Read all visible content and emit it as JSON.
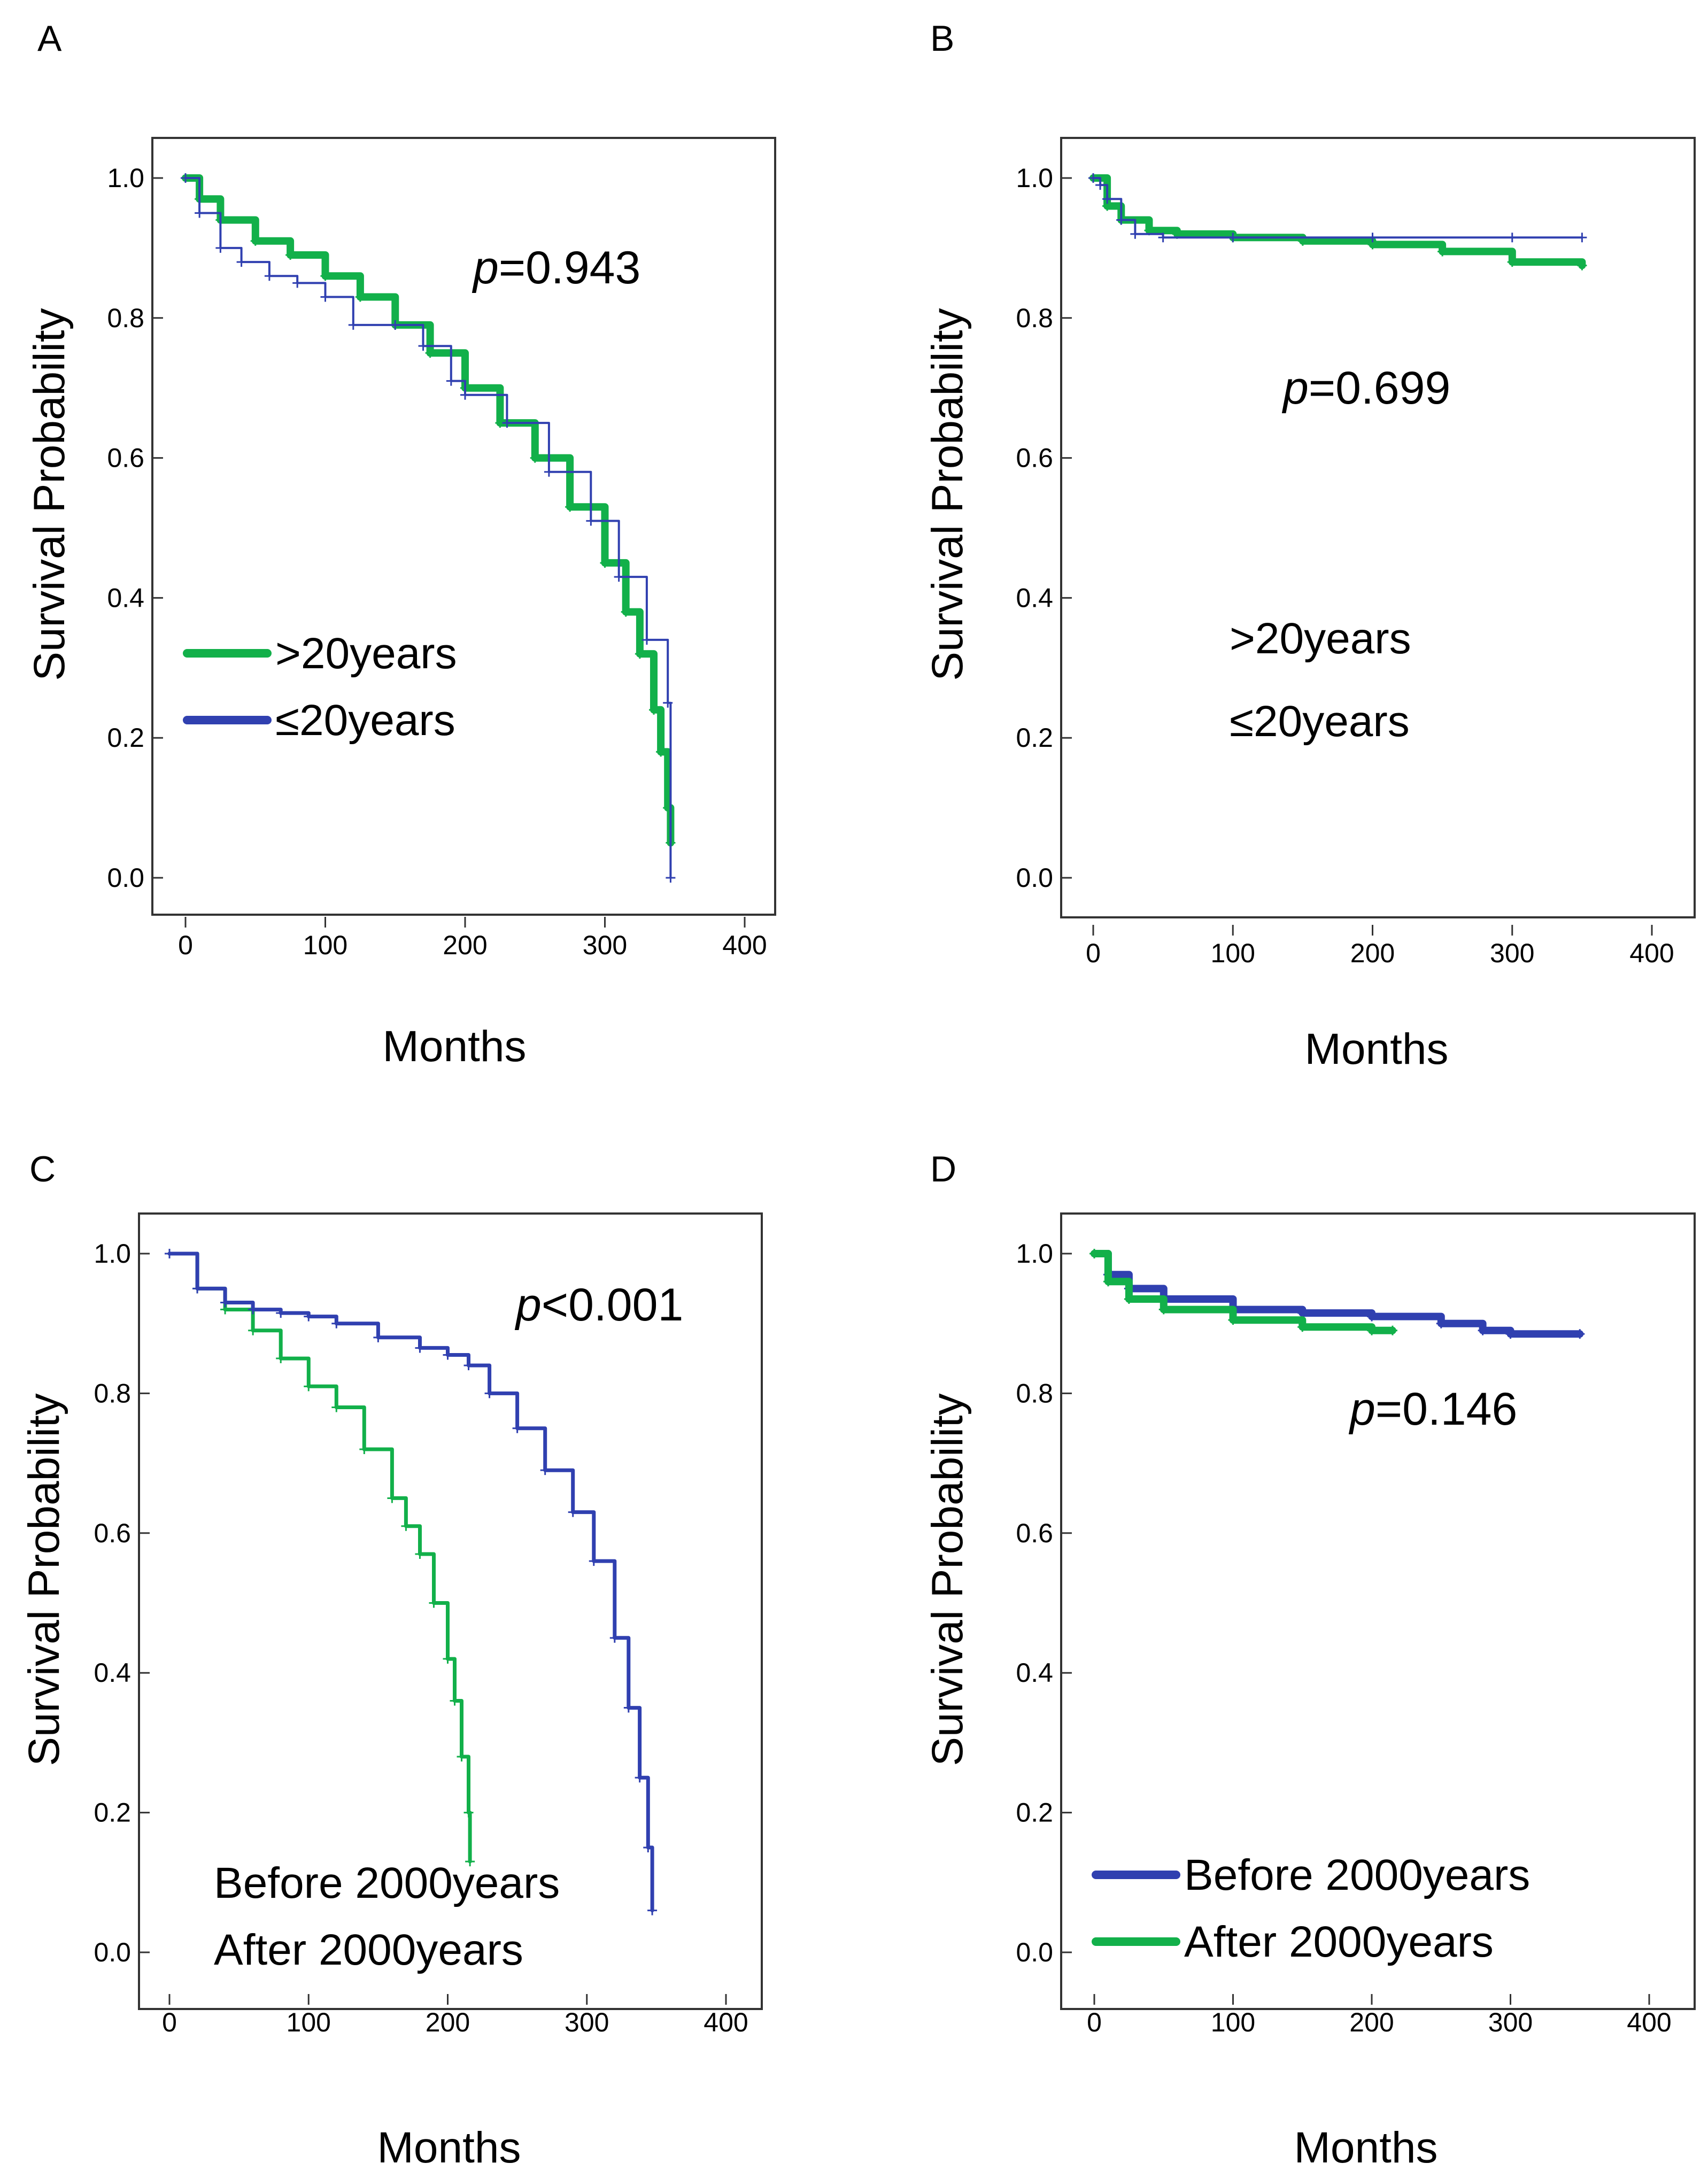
{
  "colors": {
    "green": "#12b04a",
    "blue": "#3040b0",
    "frame": "#333333"
  },
  "chart_data": [
    {
      "panel": "A",
      "type": "line",
      "xlabel": "Months",
      "ylabel": "Survival Probability",
      "xlim": [
        0,
        400
      ],
      "ylim": [
        0,
        1.0
      ],
      "xticks": [
        "0",
        "100",
        "200",
        "300",
        "400"
      ],
      "yticks": [
        "0.0",
        "0.2",
        "0.4",
        "0.6",
        "0.8",
        "1.0"
      ],
      "p_prefix": "p",
      "p_rest": "=0.943",
      "legend": [
        {
          "label": ">20years",
          "color": "green",
          "show_line": true
        },
        {
          "label": "≤20years",
          "color": "blue",
          "show_line": true
        }
      ],
      "series": [
        {
          "name": ">20years",
          "color": "green",
          "width": "thick",
          "x": [
            0,
            10,
            25,
            50,
            75,
            100,
            125,
            150,
            175,
            200,
            225,
            250,
            275,
            300,
            315,
            325,
            335,
            340,
            345,
            347
          ],
          "y": [
            1.0,
            0.97,
            0.94,
            0.91,
            0.89,
            0.86,
            0.83,
            0.79,
            0.75,
            0.7,
            0.65,
            0.6,
            0.53,
            0.45,
            0.38,
            0.32,
            0.24,
            0.18,
            0.1,
            0.05
          ]
        },
        {
          "name": "≤20years",
          "color": "blue",
          "width": "thin",
          "x": [
            0,
            10,
            25,
            40,
            60,
            80,
            100,
            120,
            150,
            170,
            190,
            200,
            230,
            260,
            290,
            310,
            330,
            345,
            347
          ],
          "y": [
            1.0,
            0.95,
            0.9,
            0.88,
            0.86,
            0.85,
            0.83,
            0.79,
            0.79,
            0.76,
            0.71,
            0.69,
            0.65,
            0.58,
            0.51,
            0.43,
            0.34,
            0.25,
            0.0
          ]
        }
      ]
    },
    {
      "panel": "B",
      "type": "line",
      "xlabel": "Months",
      "ylabel": "Survival Probability",
      "xlim": [
        0,
        400
      ],
      "ylim": [
        0,
        1.0
      ],
      "xticks": [
        "0",
        "100",
        "200",
        "300",
        "400"
      ],
      "yticks": [
        "0.0",
        "0.2",
        "0.4",
        "0.6",
        "0.8",
        "1.0"
      ],
      "p_prefix": "p",
      "p_rest": "=0.699",
      "legend": [
        {
          "label": ">20years",
          "color": "green",
          "show_line": false
        },
        {
          "label": "≤20years",
          "color": "blue",
          "show_line": false
        }
      ],
      "series": [
        {
          "name": ">20years",
          "color": "green",
          "width": "thick",
          "x": [
            0,
            10,
            20,
            40,
            60,
            100,
            150,
            200,
            250,
            300,
            350
          ],
          "y": [
            1.0,
            0.96,
            0.94,
            0.925,
            0.92,
            0.915,
            0.91,
            0.905,
            0.895,
            0.88,
            0.875
          ]
        },
        {
          "name": "≤20years",
          "color": "blue",
          "width": "thin",
          "x": [
            0,
            5,
            10,
            20,
            30,
            50,
            100,
            200,
            300,
            350
          ],
          "y": [
            1.0,
            0.99,
            0.97,
            0.94,
            0.92,
            0.915,
            0.915,
            0.915,
            0.915,
            0.915
          ]
        }
      ]
    },
    {
      "panel": "C",
      "type": "line",
      "xlabel": "Months",
      "ylabel": "Survival Probability",
      "xlim": [
        0,
        400
      ],
      "ylim": [
        0,
        1.0
      ],
      "xticks": [
        "0",
        "100",
        "200",
        "300",
        "400"
      ],
      "yticks": [
        "0.0",
        "0.2",
        "0.4",
        "0.6",
        "0.8",
        "1.0"
      ],
      "p_prefix": "p",
      "p_rest": "<0.001",
      "legend": [
        {
          "label": "Before 2000years",
          "color": "blue",
          "show_line": false
        },
        {
          "label": "After 2000years",
          "color": "green",
          "show_line": false
        }
      ],
      "series": [
        {
          "name": "After 2000years",
          "color": "green",
          "width": "medium",
          "x": [
            0,
            20,
            40,
            60,
            80,
            100,
            120,
            140,
            160,
            170,
            180,
            190,
            200,
            205,
            210,
            215,
            216
          ],
          "y": [
            1.0,
            0.95,
            0.92,
            0.89,
            0.85,
            0.81,
            0.78,
            0.72,
            0.65,
            0.61,
            0.57,
            0.5,
            0.42,
            0.36,
            0.28,
            0.2,
            0.13
          ]
        },
        {
          "name": "Before 2000years",
          "color": "blue",
          "width": "medium",
          "x": [
            0,
            20,
            40,
            60,
            80,
            100,
            120,
            150,
            180,
            200,
            215,
            230,
            250,
            270,
            290,
            305,
            320,
            330,
            338,
            344,
            347
          ],
          "y": [
            1.0,
            0.95,
            0.93,
            0.92,
            0.915,
            0.91,
            0.9,
            0.88,
            0.865,
            0.855,
            0.84,
            0.8,
            0.75,
            0.69,
            0.63,
            0.56,
            0.45,
            0.35,
            0.25,
            0.15,
            0.06
          ]
        }
      ]
    },
    {
      "panel": "D",
      "type": "line",
      "xlabel": "Months",
      "ylabel": "Survival Probability",
      "xlim": [
        0,
        400
      ],
      "ylim": [
        0,
        1.0
      ],
      "xticks": [
        "0",
        "100",
        "200",
        "300",
        "400"
      ],
      "yticks": [
        "0.0",
        "0.2",
        "0.4",
        "0.6",
        "0.8",
        "1.0"
      ],
      "p_prefix": "p",
      "p_rest": "=0.146",
      "legend": [
        {
          "label": "Before 2000years",
          "color": "blue",
          "show_line": true
        },
        {
          "label": "After 2000years",
          "color": "green",
          "show_line": true
        }
      ],
      "series": [
        {
          "name": "Before 2000years",
          "color": "blue",
          "width": "thick",
          "x": [
            0,
            10,
            25,
            50,
            100,
            150,
            200,
            250,
            280,
            300,
            350
          ],
          "y": [
            1.0,
            0.97,
            0.95,
            0.935,
            0.92,
            0.915,
            0.91,
            0.9,
            0.89,
            0.885,
            0.885
          ]
        },
        {
          "name": "After 2000years",
          "color": "green",
          "width": "thick",
          "x": [
            0,
            10,
            25,
            50,
            100,
            150,
            200,
            215
          ],
          "y": [
            1.0,
            0.96,
            0.935,
            0.92,
            0.905,
            0.895,
            0.89,
            0.89
          ]
        }
      ]
    }
  ]
}
